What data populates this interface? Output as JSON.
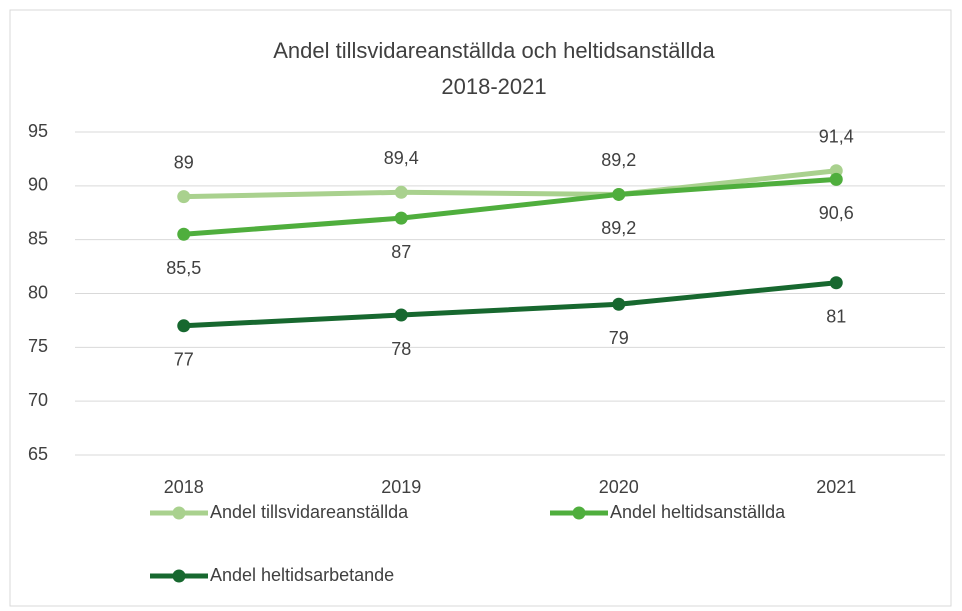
{
  "chart_data": {
    "type": "line",
    "title": "Andel tillsvidareanställda och heltidsanställda",
    "subtitle": "2018-2021",
    "categories": [
      "2018",
      "2019",
      "2020",
      "2021"
    ],
    "series": [
      {
        "name": "Andel tillsvidareanställda",
        "color": "#a9d18e",
        "values": [
          89,
          89.4,
          89.2,
          91.4
        ],
        "value_labels": [
          "89",
          "89,4",
          "89,2",
          "91,4"
        ]
      },
      {
        "name": "Andel heltidsanställda",
        "color": "#4fae3d",
        "values": [
          85.5,
          87,
          89.2,
          90.6
        ],
        "value_labels": [
          "85,5",
          "87",
          "89,2",
          "90,6"
        ]
      },
      {
        "name": "Andel heltidsarbetande",
        "color": "#17682f",
        "values": [
          77,
          78,
          79,
          81
        ],
        "value_labels": [
          "77",
          "78",
          "79",
          "81"
        ]
      }
    ],
    "ylim": [
      65,
      95
    ],
    "yticks": [
      65,
      70,
      75,
      80,
      85,
      90,
      95
    ],
    "grid": true
  }
}
